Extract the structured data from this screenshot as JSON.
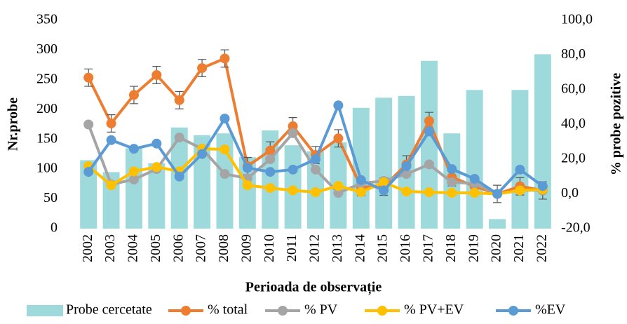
{
  "chart_data": {
    "type": "bar",
    "x_label": "Perioada de observație",
    "y_label": "Nr.probe",
    "y2_label": "% probe pozitive",
    "categories": [
      "2002",
      "2003",
      "2004",
      "2005",
      "2006",
      "2007",
      "2008",
      "2009",
      "2010",
      "2011",
      "2012",
      "2013",
      "2014",
      "2015",
      "2016",
      "2017",
      "2018",
      "2019",
      "2020",
      "2021",
      "2022"
    ],
    "ylim": [
      0,
      350
    ],
    "yticks": [
      0,
      50,
      100,
      150,
      200,
      250,
      300,
      350
    ],
    "y2lim": [
      -20,
      100
    ],
    "y2ticks": [
      {
        "value": -20,
        "label": "-20,0"
      },
      {
        "value": 0,
        "label": "0,0"
      },
      {
        "value": 20,
        "label": "20,0"
      },
      {
        "value": 40,
        "label": "40,0"
      },
      {
        "value": 60,
        "label": "60,0"
      },
      {
        "value": 80,
        "label": "80,0"
      },
      {
        "value": 100,
        "label": "100,0"
      }
    ],
    "legend": "bottom",
    "series": [
      {
        "name": "Probe cercetate",
        "type": "bar",
        "color": "#9ed9dc",
        "values": [
          115,
          95,
          135,
          110,
          170,
          157,
          160,
          120,
          165,
          140,
          130,
          145,
          203,
          220,
          223,
          282,
          160,
          233,
          16,
          233,
          293
        ]
      },
      {
        "name": "% total",
        "type": "line",
        "axis": "y2",
        "color": "#ed7d31",
        "values": [
          67,
          40.6,
          57,
          68.5,
          54,
          72.5,
          78,
          16,
          25,
          39,
          22.4,
          32,
          4,
          4.2,
          17,
          42,
          9.6,
          4.4,
          0,
          4.4,
          2
        ],
        "errors": [
          5,
          5,
          5,
          5,
          5,
          5,
          5,
          5,
          5,
          5,
          5,
          5,
          5,
          5,
          5,
          5,
          5,
          5,
          5,
          5,
          5
        ]
      },
      {
        "name": "% PV",
        "type": "line",
        "axis": "y2",
        "color": "#a5a5a5",
        "values": [
          40,
          5.5,
          8.3,
          14.3,
          32.5,
          26,
          11.5,
          9,
          20,
          35,
          14,
          0.6,
          6,
          7.5,
          11.5,
          17,
          6.7,
          6,
          0,
          2,
          2.2
        ]
      },
      {
        "name": "% PV+EV",
        "type": "line",
        "axis": "y2",
        "color": "#ffc000",
        "values": [
          16,
          5,
          13,
          15.5,
          13,
          26,
          25.6,
          5,
          3.4,
          2,
          1,
          4.6,
          1,
          6.7,
          1.4,
          1,
          0.6,
          0.6,
          0,
          2,
          2.6
        ]
      },
      {
        "name": "%EV",
        "type": "line",
        "axis": "y2",
        "color": "#5b9bd5",
        "values": [
          12.7,
          31,
          26,
          29,
          10,
          23,
          43.4,
          15,
          12.7,
          14,
          20,
          51,
          8,
          2,
          16,
          36,
          14.3,
          8.7,
          0,
          14,
          4.5
        ]
      }
    ]
  }
}
